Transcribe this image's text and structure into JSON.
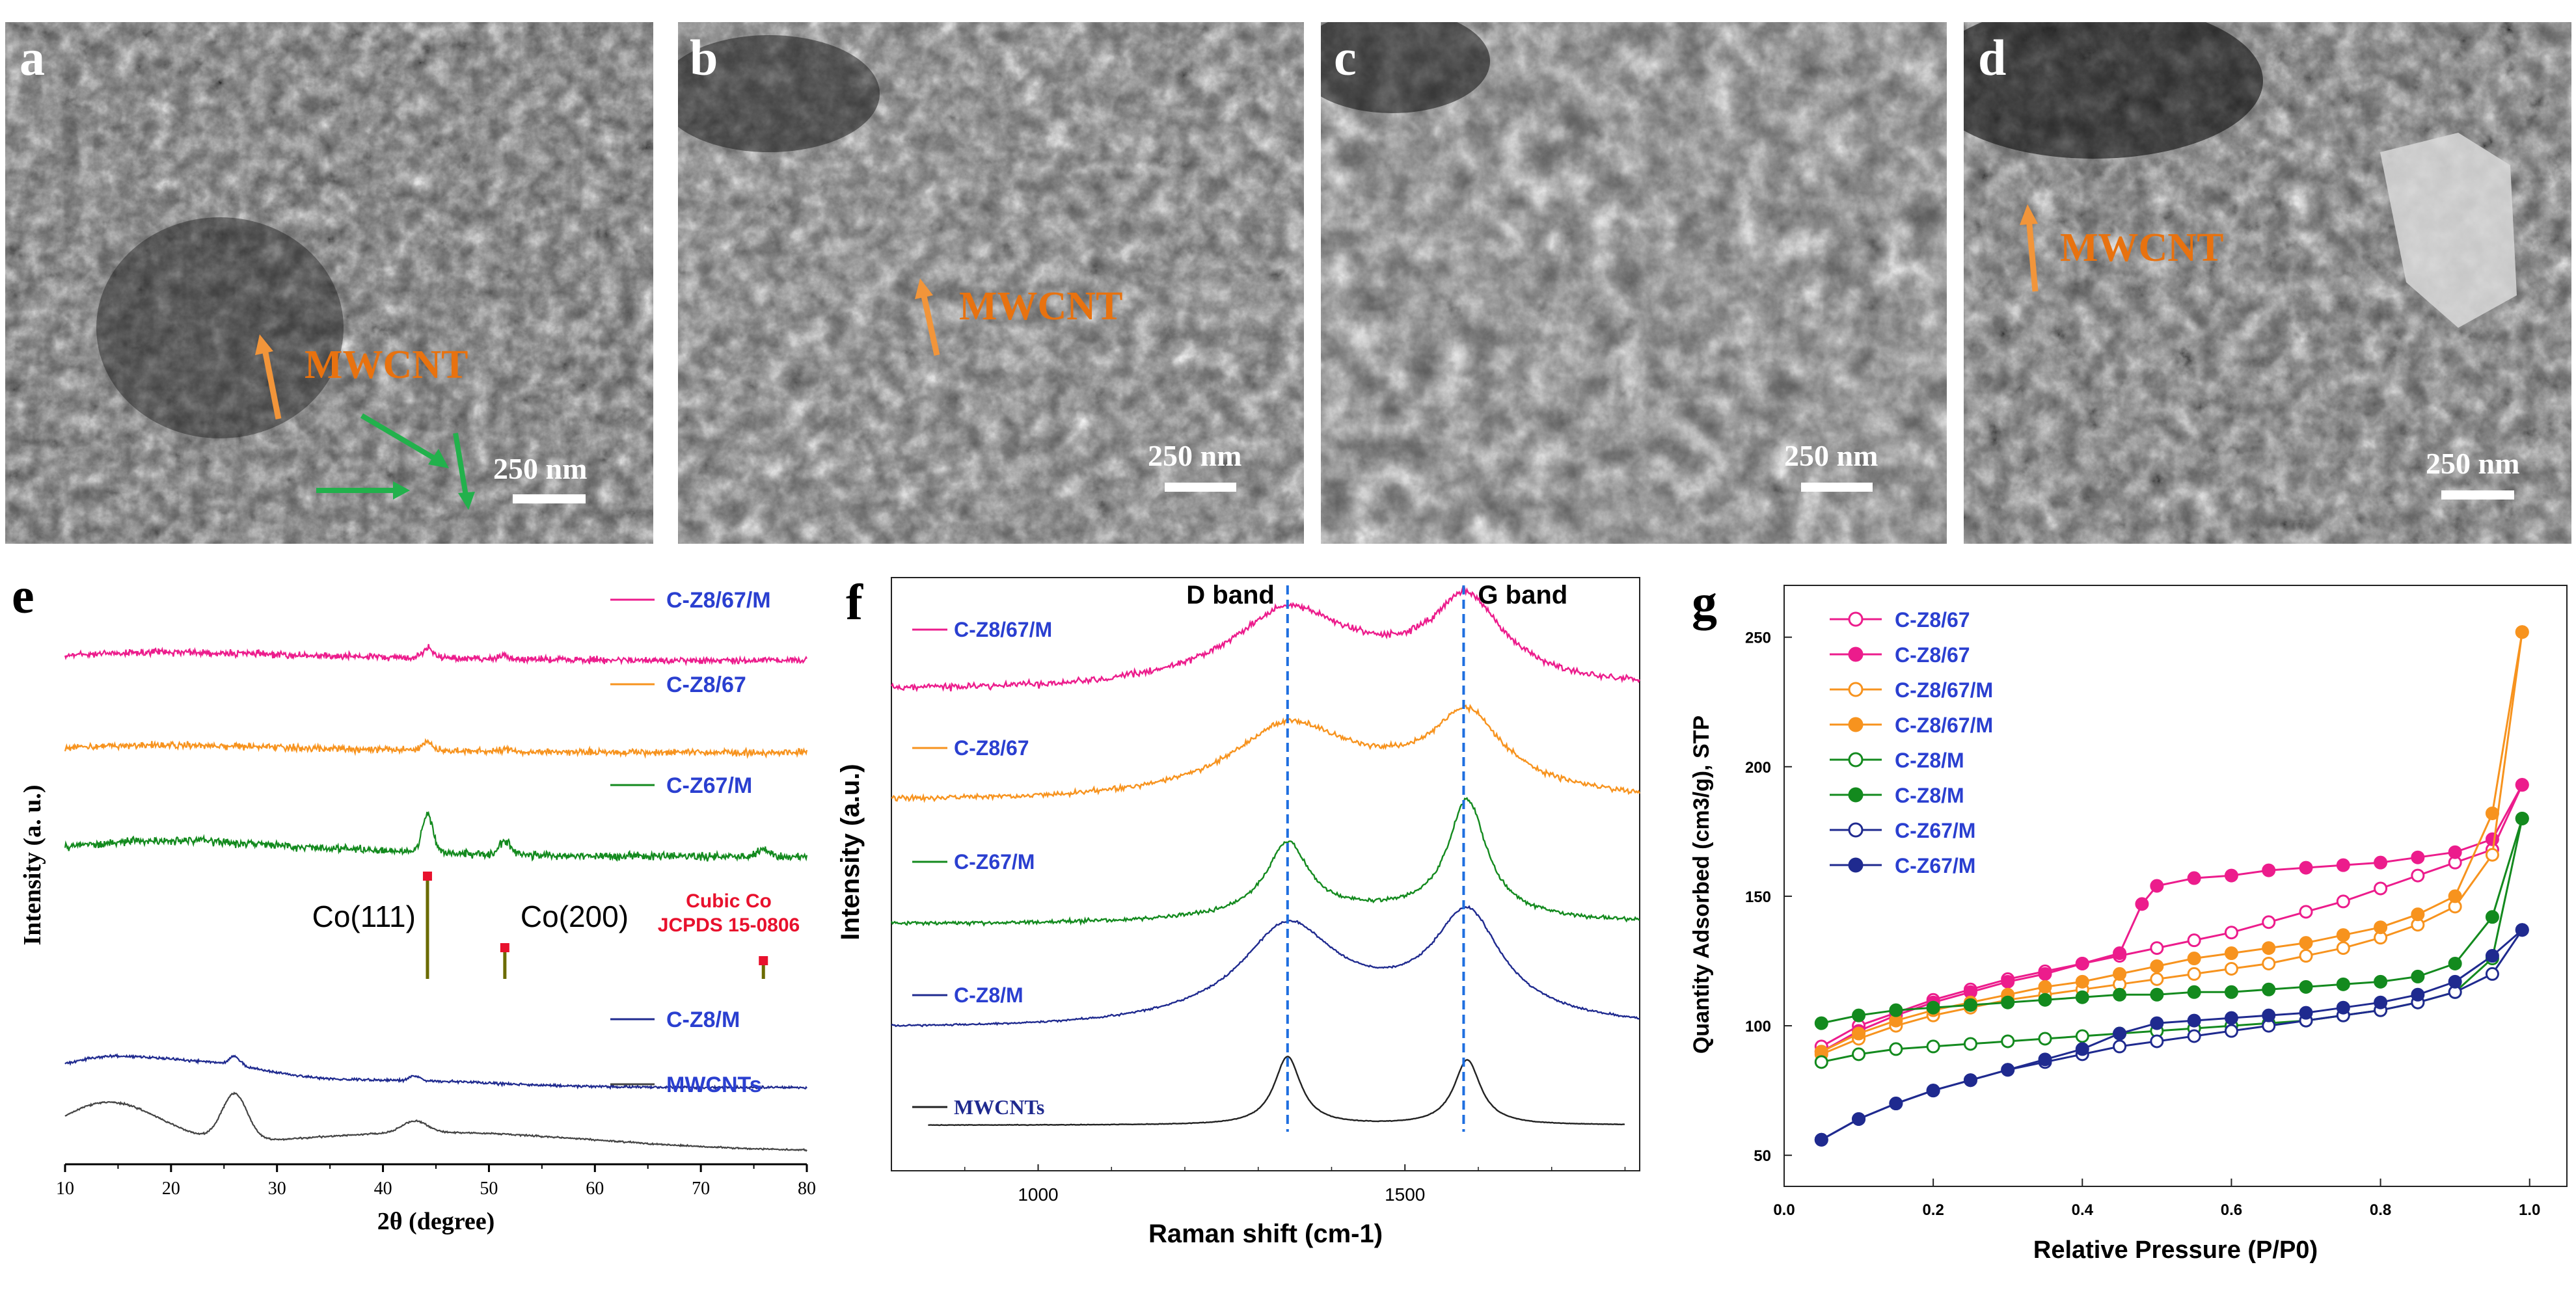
{
  "sem_panels": [
    {
      "label": "a",
      "scale": "250 nm",
      "annotation": "MWCNT"
    },
    {
      "label": "b",
      "scale": "250 nm",
      "annotation": "MWCNT"
    },
    {
      "label": "c",
      "scale": "250 nm",
      "annotation": ""
    },
    {
      "label": "d",
      "scale": "250 nm",
      "annotation": "MWCNT"
    }
  ],
  "colors": {
    "pink": "#ec1c8c",
    "orange": "#f7931e",
    "green": "#138a1e",
    "navy": "#1f2a8f",
    "black": "#222222",
    "blue_label": "#2a3fd0",
    "red": "#e8112d",
    "mwcnt": "#e8720f"
  },
  "chart_data": [
    {
      "id": "e",
      "type": "line",
      "label": "e",
      "title": "",
      "xlabel": "2θ (degree)",
      "ylabel": "Intensity (a. u.)",
      "xlim": [
        10,
        80
      ],
      "xticks": [
        "10",
        "20",
        "30",
        "40",
        "50",
        "60",
        "70",
        "80"
      ],
      "series": [
        {
          "name": "C-Z8/67/M",
          "peaks": [
            [
              44.2,
              0.5
            ],
            [
              51.5,
              0.15
            ]
          ]
        },
        {
          "name": "C-Z8/67",
          "peaks": [
            [
              44.2,
              0.45
            ],
            [
              51.5,
              0.12
            ]
          ]
        },
        {
          "name": "C-Z67/M",
          "peaks": [
            [
              44.2,
              1.0
            ],
            [
              51.5,
              0.35
            ],
            [
              75.9,
              0.2
            ]
          ]
        },
        {
          "name": "C-Z8/M",
          "peaks": [
            [
              26,
              0.3
            ],
            [
              43,
              0.15
            ]
          ]
        },
        {
          "name": "MWCNTs",
          "peaks": [
            [
              26,
              1.0
            ],
            [
              43,
              0.25
            ]
          ]
        }
      ],
      "reference": {
        "name": "Cubic Co",
        "card": "JCPDS 15-0806",
        "lines": [
          {
            "x": 44.2,
            "label": "Co(111)"
          },
          {
            "x": 51.5,
            "label": "Co(200)"
          },
          {
            "x": 75.9,
            "label": ""
          }
        ]
      }
    },
    {
      "id": "f",
      "type": "line",
      "label": "f",
      "title": "",
      "xlabel": "Raman shift (cm-1)",
      "ylabel": "Intensity (a.u.)",
      "xlim": [
        800,
        1820
      ],
      "xticks": [
        "1000",
        "1500"
      ],
      "d_band": {
        "label": "D band",
        "x": 1340
      },
      "g_band": {
        "label": "G band",
        "x": 1580
      },
      "series": [
        {
          "name": "C-Z8/67/M"
        },
        {
          "name": "C-Z8/67"
        },
        {
          "name": "C-Z67/M"
        },
        {
          "name": "C-Z8/M"
        },
        {
          "name": "MWCNTs"
        }
      ]
    },
    {
      "id": "g",
      "type": "scatter",
      "label": "g",
      "title": "",
      "xlabel": "Relative Pressure (P/P0)",
      "ylabel": "Quantity Adsorbed (cm3/g), STP",
      "xlim": [
        0,
        1.05
      ],
      "ylim": [
        38,
        270
      ],
      "xticks": [
        "0.0",
        "0.2",
        "0.4",
        "0.6",
        "0.8",
        "1.0"
      ],
      "yticks": [
        "50",
        "100",
        "150",
        "200",
        "250"
      ],
      "series": [
        {
          "name": "C-Z8/67",
          "marker": "open",
          "color": "pink",
          "x": [
            0.05,
            0.1,
            0.15,
            0.2,
            0.25,
            0.3,
            0.35,
            0.4,
            0.45,
            0.5,
            0.55,
            0.6,
            0.65,
            0.7,
            0.75,
            0.8,
            0.85,
            0.9,
            0.95,
            0.99
          ],
          "y": [
            92,
            100,
            105,
            110,
            114,
            118,
            121,
            124,
            127,
            130,
            133,
            136,
            140,
            144,
            148,
            153,
            158,
            163,
            168,
            193
          ]
        },
        {
          "name": "C-Z8/67",
          "marker": "filled",
          "color": "pink",
          "x": [
            0.05,
            0.1,
            0.15,
            0.2,
            0.25,
            0.3,
            0.35,
            0.4,
            0.45,
            0.48,
            0.5,
            0.55,
            0.6,
            0.65,
            0.7,
            0.75,
            0.8,
            0.85,
            0.9,
            0.95,
            0.99
          ],
          "y": [
            90,
            98,
            104,
            109,
            113,
            117,
            120,
            124,
            128,
            147,
            154,
            157,
            158,
            160,
            161,
            162,
            163,
            165,
            167,
            172,
            193
          ]
        },
        {
          "name": "C-Z8/67/M",
          "marker": "open",
          "color": "orange",
          "x": [
            0.05,
            0.1,
            0.15,
            0.2,
            0.25,
            0.3,
            0.35,
            0.4,
            0.45,
            0.5,
            0.55,
            0.6,
            0.65,
            0.7,
            0.75,
            0.8,
            0.85,
            0.9,
            0.95,
            0.99
          ],
          "y": [
            89,
            95,
            100,
            104,
            107,
            110,
            112,
            114,
            116,
            118,
            120,
            122,
            124,
            127,
            130,
            134,
            139,
            146,
            166,
            252
          ]
        },
        {
          "name": "C-Z8/67/M",
          "marker": "filled",
          "color": "orange",
          "x": [
            0.05,
            0.1,
            0.15,
            0.2,
            0.25,
            0.3,
            0.35,
            0.4,
            0.45,
            0.5,
            0.55,
            0.6,
            0.65,
            0.7,
            0.75,
            0.8,
            0.85,
            0.9,
            0.95,
            0.99
          ],
          "y": [
            90,
            97,
            102,
            106,
            109,
            112,
            115,
            117,
            120,
            123,
            126,
            128,
            130,
            132,
            135,
            138,
            143,
            150,
            182,
            252
          ]
        },
        {
          "name": "C-Z8/M",
          "marker": "open",
          "color": "green",
          "x": [
            0.05,
            0.1,
            0.15,
            0.2,
            0.25,
            0.3,
            0.35,
            0.4,
            0.45,
            0.5,
            0.55,
            0.6,
            0.65,
            0.7,
            0.75,
            0.8,
            0.85,
            0.9,
            0.95,
            0.99
          ],
          "y": [
            86,
            89,
            91,
            92,
            93,
            94,
            95,
            96,
            97,
            98,
            99,
            100,
            101,
            102,
            104,
            106,
            109,
            113,
            126,
            180
          ]
        },
        {
          "name": "C-Z8/M",
          "marker": "filled",
          "color": "green",
          "x": [
            0.05,
            0.1,
            0.15,
            0.2,
            0.25,
            0.3,
            0.35,
            0.4,
            0.45,
            0.5,
            0.55,
            0.6,
            0.65,
            0.7,
            0.75,
            0.8,
            0.85,
            0.9,
            0.95,
            0.99
          ],
          "y": [
            101,
            104,
            106,
            107,
            108,
            109,
            110,
            111,
            112,
            112,
            113,
            113,
            114,
            115,
            116,
            117,
            119,
            124,
            142,
            180
          ]
        },
        {
          "name": "C-Z67/M",
          "marker": "open",
          "color": "navy",
          "x": [
            0.05,
            0.1,
            0.15,
            0.2,
            0.25,
            0.3,
            0.35,
            0.4,
            0.45,
            0.5,
            0.55,
            0.6,
            0.65,
            0.7,
            0.75,
            0.8,
            0.85,
            0.9,
            0.95,
            0.99
          ],
          "y": [
            56,
            64,
            70,
            75,
            79,
            83,
            86,
            89,
            92,
            94,
            96,
            98,
            100,
            102,
            104,
            106,
            109,
            113,
            120,
            137
          ]
        },
        {
          "name": "C-Z67/M",
          "marker": "filled",
          "color": "navy",
          "x": [
            0.05,
            0.1,
            0.15,
            0.2,
            0.25,
            0.3,
            0.35,
            0.4,
            0.45,
            0.5,
            0.55,
            0.6,
            0.65,
            0.7,
            0.75,
            0.8,
            0.85,
            0.9,
            0.95,
            0.99
          ],
          "y": [
            56,
            64,
            70,
            75,
            79,
            83,
            87,
            91,
            97,
            101,
            102,
            103,
            104,
            105,
            107,
            109,
            112,
            117,
            127,
            137
          ]
        }
      ]
    }
  ]
}
